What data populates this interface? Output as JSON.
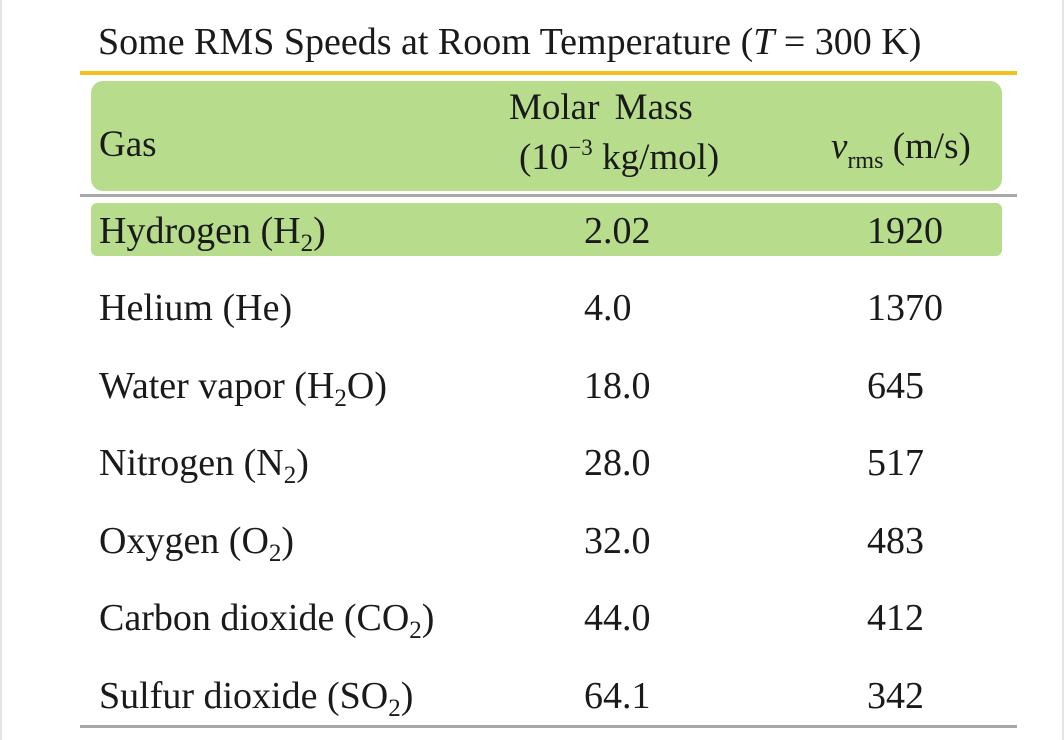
{
  "table": {
    "title_prefix": "Some RMS Speeds at Room Temperature (",
    "title_var": "T",
    "title_suffix": " = 300 K)",
    "headers": {
      "gas": "Gas",
      "molar_mass_line1": "Molar  Mass",
      "molar_mass_line2_a": "(10",
      "molar_mass_line2_exp": "−3",
      "molar_mass_line2_b": " kg/mol)",
      "vrms_symbol": "v",
      "vrms_sub": "rms",
      "vrms_unit": " (m/s)"
    },
    "rows": [
      {
        "name": "Hydrogen (H",
        "sub": "2",
        "after": ")",
        "molar_mass": "2.02",
        "vrms": "1920"
      },
      {
        "name": "Helium (He)",
        "sub": "",
        "after": "",
        "molar_mass": "4.0",
        "vrms": "1370"
      },
      {
        "name": "Water vapor (H",
        "sub": "2",
        "after": "O)",
        "molar_mass": "18.0",
        "vrms": "645"
      },
      {
        "name": "Nitrogen (N",
        "sub": "2",
        "after": ")",
        "molar_mass": "28.0",
        "vrms": "517"
      },
      {
        "name": "Oxygen (O",
        "sub": "2",
        "after": ")",
        "molar_mass": "32.0",
        "vrms": "483"
      },
      {
        "name": "Carbon dioxide (CO",
        "sub": "2",
        "after": ")",
        "molar_mass": "44.0",
        "vrms": "412"
      },
      {
        "name": "Sulfur dioxide (SO",
        "sub": "2",
        "after": ")",
        "molar_mass": "64.1",
        "vrms": "342"
      }
    ]
  },
  "colors": {
    "highlight_green": "#b7dd8c",
    "title_rule_gold": "#f2c21b",
    "rule_gray": "#a8a8a8"
  }
}
